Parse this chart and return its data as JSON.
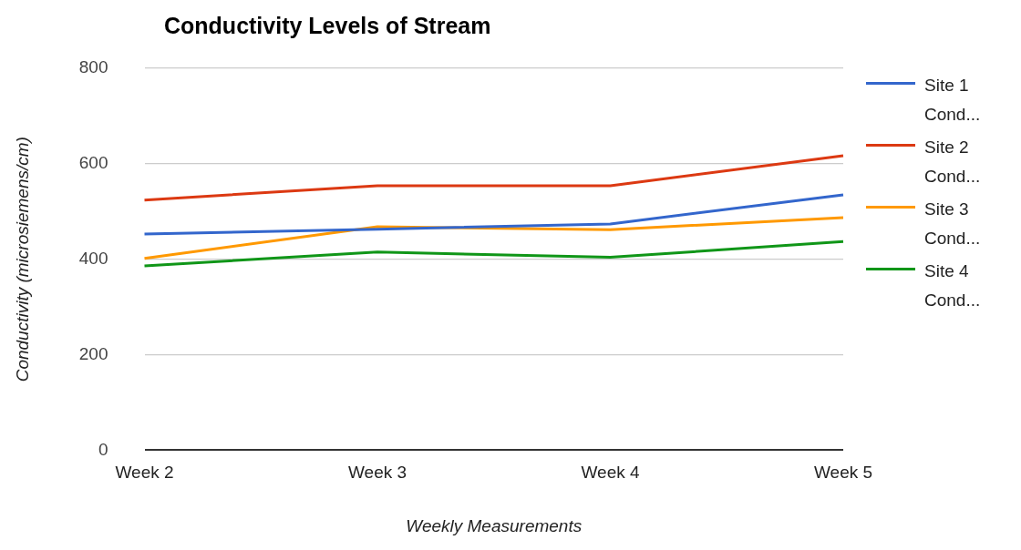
{
  "chart_data": {
    "type": "line",
    "title": "Conductivity Levels of Stream",
    "xlabel": "Weekly Measurements",
    "ylabel": "Conductivity (microsiemens/cm)",
    "categories": [
      "Week 2",
      "Week 3",
      "Week 4",
      "Week 5"
    ],
    "series": [
      {
        "name": "Site 1 Cond...",
        "color": "#3366cc",
        "values": [
          453,
          463,
          474,
          535
        ]
      },
      {
        "name": "Site 2 Cond...",
        "color": "#dc3912",
        "values": [
          524,
          554,
          554,
          617
        ]
      },
      {
        "name": "Site 3 Cond...",
        "color": "#ff9900",
        "values": [
          402,
          468,
          462,
          487
        ]
      },
      {
        "name": "Site 4 Cond...",
        "color": "#109618",
        "values": [
          386,
          415,
          404,
          437
        ]
      }
    ],
    "ylim": [
      0,
      800
    ],
    "yticks": [
      0,
      200,
      400,
      600,
      800
    ],
    "grid": "y",
    "legend": "right",
    "marker": "none",
    "line_style": "solid"
  }
}
